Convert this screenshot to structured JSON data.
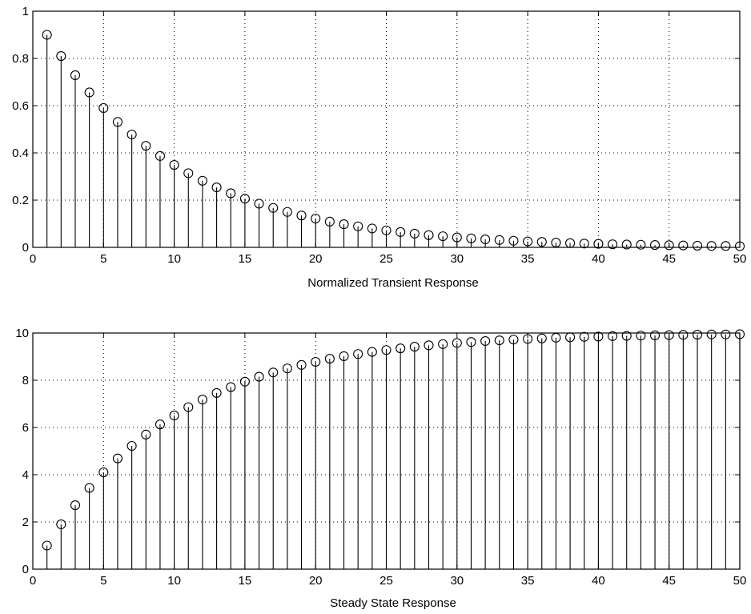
{
  "chart_data": [
    {
      "type": "stem",
      "title": "",
      "xlabel": "Normalized Transient Response",
      "ylabel": "",
      "xlim": [
        0,
        50
      ],
      "ylim": [
        0,
        1
      ],
      "grid": true,
      "xticks": [
        "0",
        "5",
        "10",
        "15",
        "20",
        "25",
        "30",
        "35",
        "40",
        "45",
        "50"
      ],
      "yticks": [
        "0",
        "0.2",
        "0.4",
        "0.6",
        "0.8",
        "1"
      ],
      "x": [
        1,
        2,
        3,
        4,
        5,
        6,
        7,
        8,
        9,
        10,
        11,
        12,
        13,
        14,
        15,
        16,
        17,
        18,
        19,
        20,
        21,
        22,
        23,
        24,
        25,
        26,
        27,
        28,
        29,
        30,
        31,
        32,
        33,
        34,
        35,
        36,
        37,
        38,
        39,
        40,
        41,
        42,
        43,
        44,
        45,
        46,
        47,
        48,
        49,
        50
      ],
      "values": [
        0.9,
        0.81,
        0.729,
        0.656,
        0.59,
        0.531,
        0.478,
        0.43,
        0.387,
        0.349,
        0.314,
        0.282,
        0.254,
        0.229,
        0.206,
        0.185,
        0.167,
        0.15,
        0.135,
        0.122,
        0.109,
        0.098,
        0.089,
        0.08,
        0.072,
        0.065,
        0.058,
        0.052,
        0.047,
        0.042,
        0.038,
        0.034,
        0.031,
        0.028,
        0.025,
        0.023,
        0.02,
        0.018,
        0.016,
        0.015,
        0.013,
        0.012,
        0.011,
        0.01,
        0.009,
        0.008,
        0.007,
        0.006,
        0.006,
        0.005
      ]
    },
    {
      "type": "stem",
      "title": "",
      "xlabel": "Steady State Response",
      "ylabel": "",
      "xlim": [
        0,
        50
      ],
      "ylim": [
        0,
        10
      ],
      "grid": true,
      "xticks": [
        "0",
        "5",
        "10",
        "15",
        "20",
        "25",
        "30",
        "35",
        "40",
        "45",
        "50"
      ],
      "yticks": [
        "0",
        "2",
        "4",
        "6",
        "8",
        "10"
      ],
      "x": [
        1,
        2,
        3,
        4,
        5,
        6,
        7,
        8,
        9,
        10,
        11,
        12,
        13,
        14,
        15,
        16,
        17,
        18,
        19,
        20,
        21,
        22,
        23,
        24,
        25,
        26,
        27,
        28,
        29,
        30,
        31,
        32,
        33,
        34,
        35,
        36,
        37,
        38,
        39,
        40,
        41,
        42,
        43,
        44,
        45,
        46,
        47,
        48,
        49,
        50
      ],
      "values": [
        1.0,
        1.9,
        2.71,
        3.44,
        4.1,
        4.69,
        5.22,
        5.7,
        6.13,
        6.51,
        6.86,
        7.18,
        7.46,
        7.71,
        7.94,
        8.15,
        8.33,
        8.5,
        8.65,
        8.78,
        8.91,
        9.02,
        9.11,
        9.2,
        9.28,
        9.35,
        9.42,
        9.48,
        9.53,
        9.58,
        9.62,
        9.66,
        9.69,
        9.72,
        9.75,
        9.77,
        9.8,
        9.82,
        9.84,
        9.85,
        9.87,
        9.88,
        9.89,
        9.9,
        9.91,
        9.92,
        9.93,
        9.94,
        9.94,
        9.95
      ]
    }
  ]
}
